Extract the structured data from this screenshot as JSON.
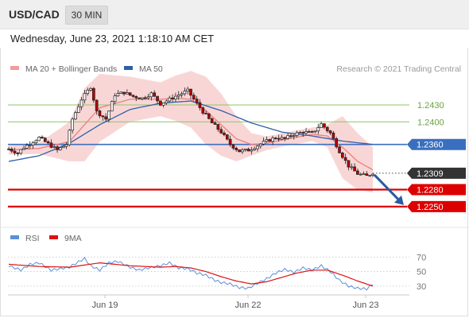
{
  "header": {
    "symbol": "USD/CAD",
    "timeframe": "30 MIN",
    "datetime": "Wednesday, June 23, 2021 1:18:10 AM CET"
  },
  "legend": {
    "ma20_label": "MA 20 + Bollinger Bands",
    "ma50_label": "MA 50",
    "copyright": "Research © 2021 Trading Central"
  },
  "colors": {
    "candle_up": "#ffffff",
    "candle_down": "#b80000",
    "bollinger": "#f4b5b5",
    "ma20": "#e98080",
    "ma50": "#2f5fa8",
    "resistance": "#8cc56a",
    "pivot": "#3a6fbf",
    "support": "#dd0000",
    "last_price": "#333333",
    "arrow": "#2a5aa0",
    "rsi": "#5b8fd9",
    "rsi_ma": "#dd1111"
  },
  "chart_data": [
    {
      "type": "candlestick",
      "title": "USD/CAD 30 MIN",
      "xlabels": [
        "Jun 19",
        "Jun 22",
        "Jun 23"
      ],
      "ylim": [
        1.2216,
        1.2475
      ],
      "levels": [
        {
          "label": "1.2430",
          "value": 1.243,
          "kind": "resistance"
        },
        {
          "label": "1.2400",
          "value": 1.24,
          "kind": "resistance"
        },
        {
          "label": "1.2360",
          "value": 1.236,
          "kind": "pivot"
        },
        {
          "label": "1.2309",
          "value": 1.2309,
          "kind": "last"
        },
        {
          "label": "1.2280",
          "value": 1.228,
          "kind": "support"
        },
        {
          "label": "1.2250",
          "value": 1.225,
          "kind": "support"
        }
      ],
      "anchors": [
        [
          0,
          1.2352
        ],
        [
          3,
          1.2345
        ],
        [
          5,
          1.2355
        ],
        [
          10,
          1.2372
        ],
        [
          16,
          1.235
        ],
        [
          19,
          1.236
        ],
        [
          21,
          1.2405
        ],
        [
          24,
          1.244
        ],
        [
          27,
          1.2462
        ],
        [
          29,
          1.2418
        ],
        [
          32,
          1.2405
        ],
        [
          35,
          1.2448
        ],
        [
          38,
          1.2452
        ],
        [
          41,
          1.2445
        ],
        [
          44,
          1.2442
        ],
        [
          47,
          1.245
        ],
        [
          50,
          1.2432
        ],
        [
          53,
          1.244
        ],
        [
          56,
          1.2448
        ],
        [
          59,
          1.2455
        ],
        [
          61,
          1.244
        ],
        [
          64,
          1.2418
        ],
        [
          67,
          1.2398
        ],
        [
          70,
          1.2382
        ],
        [
          73,
          1.236
        ],
        [
          76,
          1.2348
        ],
        [
          79,
          1.235
        ],
        [
          82,
          1.2358
        ],
        [
          85,
          1.2366
        ],
        [
          88,
          1.2372
        ],
        [
          91,
          1.237
        ],
        [
          94,
          1.2378
        ],
        [
          97,
          1.2382
        ],
        [
          100,
          1.238
        ],
        [
          103,
          1.2396
        ],
        [
          106,
          1.238
        ],
        [
          109,
          1.2348
        ],
        [
          112,
          1.2322
        ],
        [
          115,
          1.2308
        ],
        [
          118,
          1.2304
        ],
        [
          120,
          1.231
        ]
      ],
      "ma20": [
        [
          0,
          1.235
        ],
        [
          10,
          1.2353
        ],
        [
          20,
          1.2365
        ],
        [
          25,
          1.2395
        ],
        [
          30,
          1.2425
        ],
        [
          40,
          1.244
        ],
        [
          50,
          1.244
        ],
        [
          55,
          1.2442
        ],
        [
          60,
          1.244
        ],
        [
          65,
          1.242
        ],
        [
          70,
          1.2395
        ],
        [
          75,
          1.237
        ],
        [
          80,
          1.236
        ],
        [
          85,
          1.2362
        ],
        [
          90,
          1.2368
        ],
        [
          100,
          1.2378
        ],
        [
          105,
          1.2375
        ],
        [
          110,
          1.2355
        ],
        [
          115,
          1.233
        ],
        [
          120,
          1.2315
        ]
      ],
      "band_width": [
        [
          0,
          0.0008
        ],
        [
          10,
          0.001
        ],
        [
          20,
          0.0035
        ],
        [
          25,
          0.0065
        ],
        [
          30,
          0.006
        ],
        [
          40,
          0.004
        ],
        [
          50,
          0.003
        ],
        [
          55,
          0.004
        ],
        [
          60,
          0.005
        ],
        [
          65,
          0.006
        ],
        [
          70,
          0.0055
        ],
        [
          75,
          0.004
        ],
        [
          80,
          0.002
        ],
        [
          85,
          0.0012
        ],
        [
          90,
          0.0012
        ],
        [
          100,
          0.0012
        ],
        [
          105,
          0.002
        ],
        [
          110,
          0.0055
        ],
        [
          115,
          0.005
        ],
        [
          120,
          0.004
        ]
      ],
      "ma50": [
        [
          0,
          1.233
        ],
        [
          10,
          1.234
        ],
        [
          20,
          1.2362
        ],
        [
          30,
          1.2395
        ],
        [
          40,
          1.2422
        ],
        [
          50,
          1.2433
        ],
        [
          60,
          1.2437
        ],
        [
          70,
          1.242
        ],
        [
          80,
          1.2398
        ],
        [
          90,
          1.2382
        ],
        [
          100,
          1.2375
        ],
        [
          110,
          1.2366
        ],
        [
          120,
          1.236
        ]
      ],
      "projection": [
        [
          120,
          1.2309
        ],
        [
          135,
          1.225
        ]
      ]
    },
    {
      "type": "line",
      "title": "RSI",
      "series": [
        {
          "name": "RSI",
          "key": "rsi"
        },
        {
          "name": "9MA",
          "key": "rsi_ma"
        }
      ],
      "ylim": [
        20,
        78
      ],
      "yticks": [
        70,
        50,
        30
      ],
      "rsi": [
        [
          0,
          58
        ],
        [
          4,
          52
        ],
        [
          7,
          60
        ],
        [
          10,
          62
        ],
        [
          14,
          52
        ],
        [
          17,
          54
        ],
        [
          20,
          56
        ],
        [
          22,
          61
        ],
        [
          25,
          68
        ],
        [
          27,
          58
        ],
        [
          30,
          52
        ],
        [
          33,
          62
        ],
        [
          36,
          64
        ],
        [
          40,
          56
        ],
        [
          43,
          52
        ],
        [
          46,
          55
        ],
        [
          50,
          58
        ],
        [
          53,
          62
        ],
        [
          56,
          55
        ],
        [
          59,
          54
        ],
        [
          62,
          48
        ],
        [
          65,
          45
        ],
        [
          68,
          38
        ],
        [
          70,
          35
        ],
        [
          73,
          33
        ],
        [
          76,
          28
        ],
        [
          79,
          27
        ],
        [
          82,
          34
        ],
        [
          85,
          40
        ],
        [
          88,
          48
        ],
        [
          91,
          53
        ],
        [
          94,
          49
        ],
        [
          97,
          55
        ],
        [
          100,
          52
        ],
        [
          103,
          58
        ],
        [
          106,
          50
        ],
        [
          109,
          38
        ],
        [
          112,
          30
        ],
        [
          115,
          27
        ],
        [
          118,
          26
        ],
        [
          120,
          33
        ]
      ],
      "rsi_ma": [
        [
          0,
          60
        ],
        [
          10,
          57
        ],
        [
          20,
          56
        ],
        [
          25,
          59
        ],
        [
          30,
          62
        ],
        [
          40,
          58
        ],
        [
          50,
          56
        ],
        [
          55,
          57
        ],
        [
          60,
          55
        ],
        [
          65,
          50
        ],
        [
          70,
          43
        ],
        [
          75,
          37
        ],
        [
          80,
          33
        ],
        [
          85,
          36
        ],
        [
          90,
          42
        ],
        [
          95,
          48
        ],
        [
          100,
          52
        ],
        [
          105,
          52
        ],
        [
          110,
          45
        ],
        [
          115,
          37
        ],
        [
          120,
          30
        ]
      ]
    }
  ]
}
